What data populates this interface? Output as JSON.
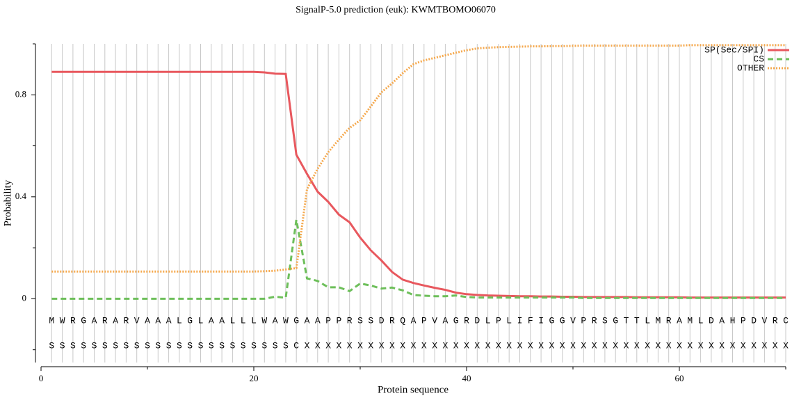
{
  "chart_data": {
    "type": "line",
    "title": "SignalP-5.0 prediction (euk):  KWMTBOMO06070",
    "xlabel": "Protein sequence",
    "ylabel": "Probability",
    "x": [
      1,
      2,
      3,
      4,
      5,
      6,
      7,
      8,
      9,
      10,
      11,
      12,
      13,
      14,
      15,
      16,
      17,
      18,
      19,
      20,
      21,
      22,
      23,
      24,
      25,
      26,
      27,
      28,
      29,
      30,
      31,
      32,
      33,
      34,
      35,
      36,
      37,
      38,
      39,
      40,
      41,
      42,
      43,
      44,
      45,
      46,
      47,
      48,
      49,
      50,
      51,
      52,
      53,
      54,
      55,
      56,
      57,
      58,
      59,
      60,
      61,
      62,
      63,
      64,
      65,
      66,
      67,
      68,
      69,
      70
    ],
    "sequence": [
      "M",
      "W",
      "R",
      "G",
      "A",
      "R",
      "A",
      "R",
      "V",
      "A",
      "A",
      "A",
      "L",
      "G",
      "L",
      "A",
      "A",
      "L",
      "L",
      "L",
      "W",
      "A",
      "W",
      "G",
      "A",
      "A",
      "P",
      "P",
      "R",
      "S",
      "S",
      "D",
      "R",
      "Q",
      "A",
      "P",
      "V",
      "A",
      "G",
      "R",
      "D",
      "L",
      "P",
      "L",
      "I",
      "F",
      "I",
      "G",
      "G",
      "V",
      "P",
      "R",
      "S",
      "G",
      "T",
      "T",
      "L",
      "M",
      "R",
      "A",
      "M",
      "L",
      "D",
      "A",
      "H",
      "P",
      "D",
      "V",
      "R",
      "C"
    ],
    "annotation": [
      "S",
      "S",
      "S",
      "S",
      "S",
      "S",
      "S",
      "S",
      "S",
      "S",
      "S",
      "S",
      "S",
      "S",
      "S",
      "S",
      "S",
      "S",
      "S",
      "S",
      "S",
      "S",
      "S",
      "C",
      "X",
      "X",
      "X",
      "X",
      "X",
      "X",
      "X",
      "X",
      "X",
      "X",
      "X",
      "X",
      "X",
      "X",
      "X",
      "X",
      "X",
      "X",
      "X",
      "X",
      "X",
      "X",
      "X",
      "X",
      "X",
      "X",
      "X",
      "X",
      "X",
      "X",
      "X",
      "X",
      "X",
      "X",
      "X",
      "X",
      "X",
      "X",
      "X",
      "X",
      "X",
      "X",
      "X",
      "X",
      "X",
      "X"
    ],
    "series": [
      {
        "name": "SP(Sec/SPI)",
        "color": "#e8585e",
        "dash": "solid",
        "values": [
          0.89,
          0.89,
          0.89,
          0.89,
          0.89,
          0.89,
          0.89,
          0.89,
          0.89,
          0.89,
          0.89,
          0.89,
          0.89,
          0.89,
          0.89,
          0.89,
          0.89,
          0.89,
          0.89,
          0.89,
          0.888,
          0.883,
          0.882,
          0.565,
          0.49,
          0.42,
          0.38,
          0.33,
          0.3,
          0.24,
          0.19,
          0.15,
          0.105,
          0.075,
          0.062,
          0.052,
          0.043,
          0.035,
          0.024,
          0.018,
          0.015,
          0.013,
          0.012,
          0.011,
          0.01,
          0.01,
          0.009,
          0.009,
          0.008,
          0.008,
          0.007,
          0.007,
          0.007,
          0.007,
          0.007,
          0.006,
          0.006,
          0.006,
          0.006,
          0.006,
          0.005,
          0.005,
          0.005,
          0.005,
          0.005,
          0.005,
          0.005,
          0.005,
          0.005,
          0.005
        ]
      },
      {
        "name": "CS",
        "color": "#6dbf5a",
        "dash": "dashed",
        "values": [
          0,
          0,
          0,
          0,
          0,
          0,
          0,
          0,
          0,
          0,
          0,
          0,
          0,
          0,
          0,
          0,
          0,
          0,
          0,
          0,
          0,
          0.008,
          0.004,
          0.31,
          0.08,
          0.07,
          0.045,
          0.045,
          0.03,
          0.06,
          0.052,
          0.04,
          0.044,
          0.033,
          0.015,
          0.012,
          0.01,
          0.01,
          0.013,
          0.007,
          0.005,
          0.005,
          0.005,
          0.005,
          0.005,
          0.005,
          0.005,
          0.005,
          0.005,
          0.005,
          0.003,
          0.003,
          0.003,
          0.003,
          0.003,
          0.003,
          0.003,
          0.003,
          0.003,
          0.003,
          0.003,
          0.003,
          0.003,
          0.003,
          0.003,
          0.003,
          0.003,
          0.003,
          0.003,
          0.003
        ]
      },
      {
        "name": "OTHER",
        "color": "#f5a84c",
        "dash": "dotted",
        "values": [
          0.107,
          0.107,
          0.107,
          0.107,
          0.107,
          0.107,
          0.107,
          0.107,
          0.107,
          0.107,
          0.107,
          0.107,
          0.107,
          0.107,
          0.107,
          0.107,
          0.107,
          0.107,
          0.107,
          0.107,
          0.108,
          0.11,
          0.115,
          0.12,
          0.43,
          0.51,
          0.575,
          0.625,
          0.67,
          0.7,
          0.755,
          0.81,
          0.845,
          0.885,
          0.92,
          0.935,
          0.945,
          0.955,
          0.965,
          0.975,
          0.982,
          0.985,
          0.987,
          0.988,
          0.989,
          0.99,
          0.99,
          0.991,
          0.991,
          0.992,
          0.993,
          0.993,
          0.993,
          0.993,
          0.993,
          0.993,
          0.993,
          0.993,
          0.993,
          0.993,
          0.995,
          0.995,
          0.995,
          0.995,
          0.995,
          0.995,
          0.995,
          0.995,
          0.995,
          0.995
        ]
      }
    ],
    "xlim": [
      0,
      70
    ],
    "xticks": [
      0,
      20,
      40,
      60
    ],
    "xminor_ticks": [
      10,
      30,
      50,
      70
    ],
    "ylim": [
      -0.25,
      1.0
    ],
    "yticks": [
      0,
      0.4,
      0.8
    ],
    "yminor_ticks": [
      -0.2,
      0.2,
      0.6,
      1.0
    ],
    "legend": "top-right"
  }
}
